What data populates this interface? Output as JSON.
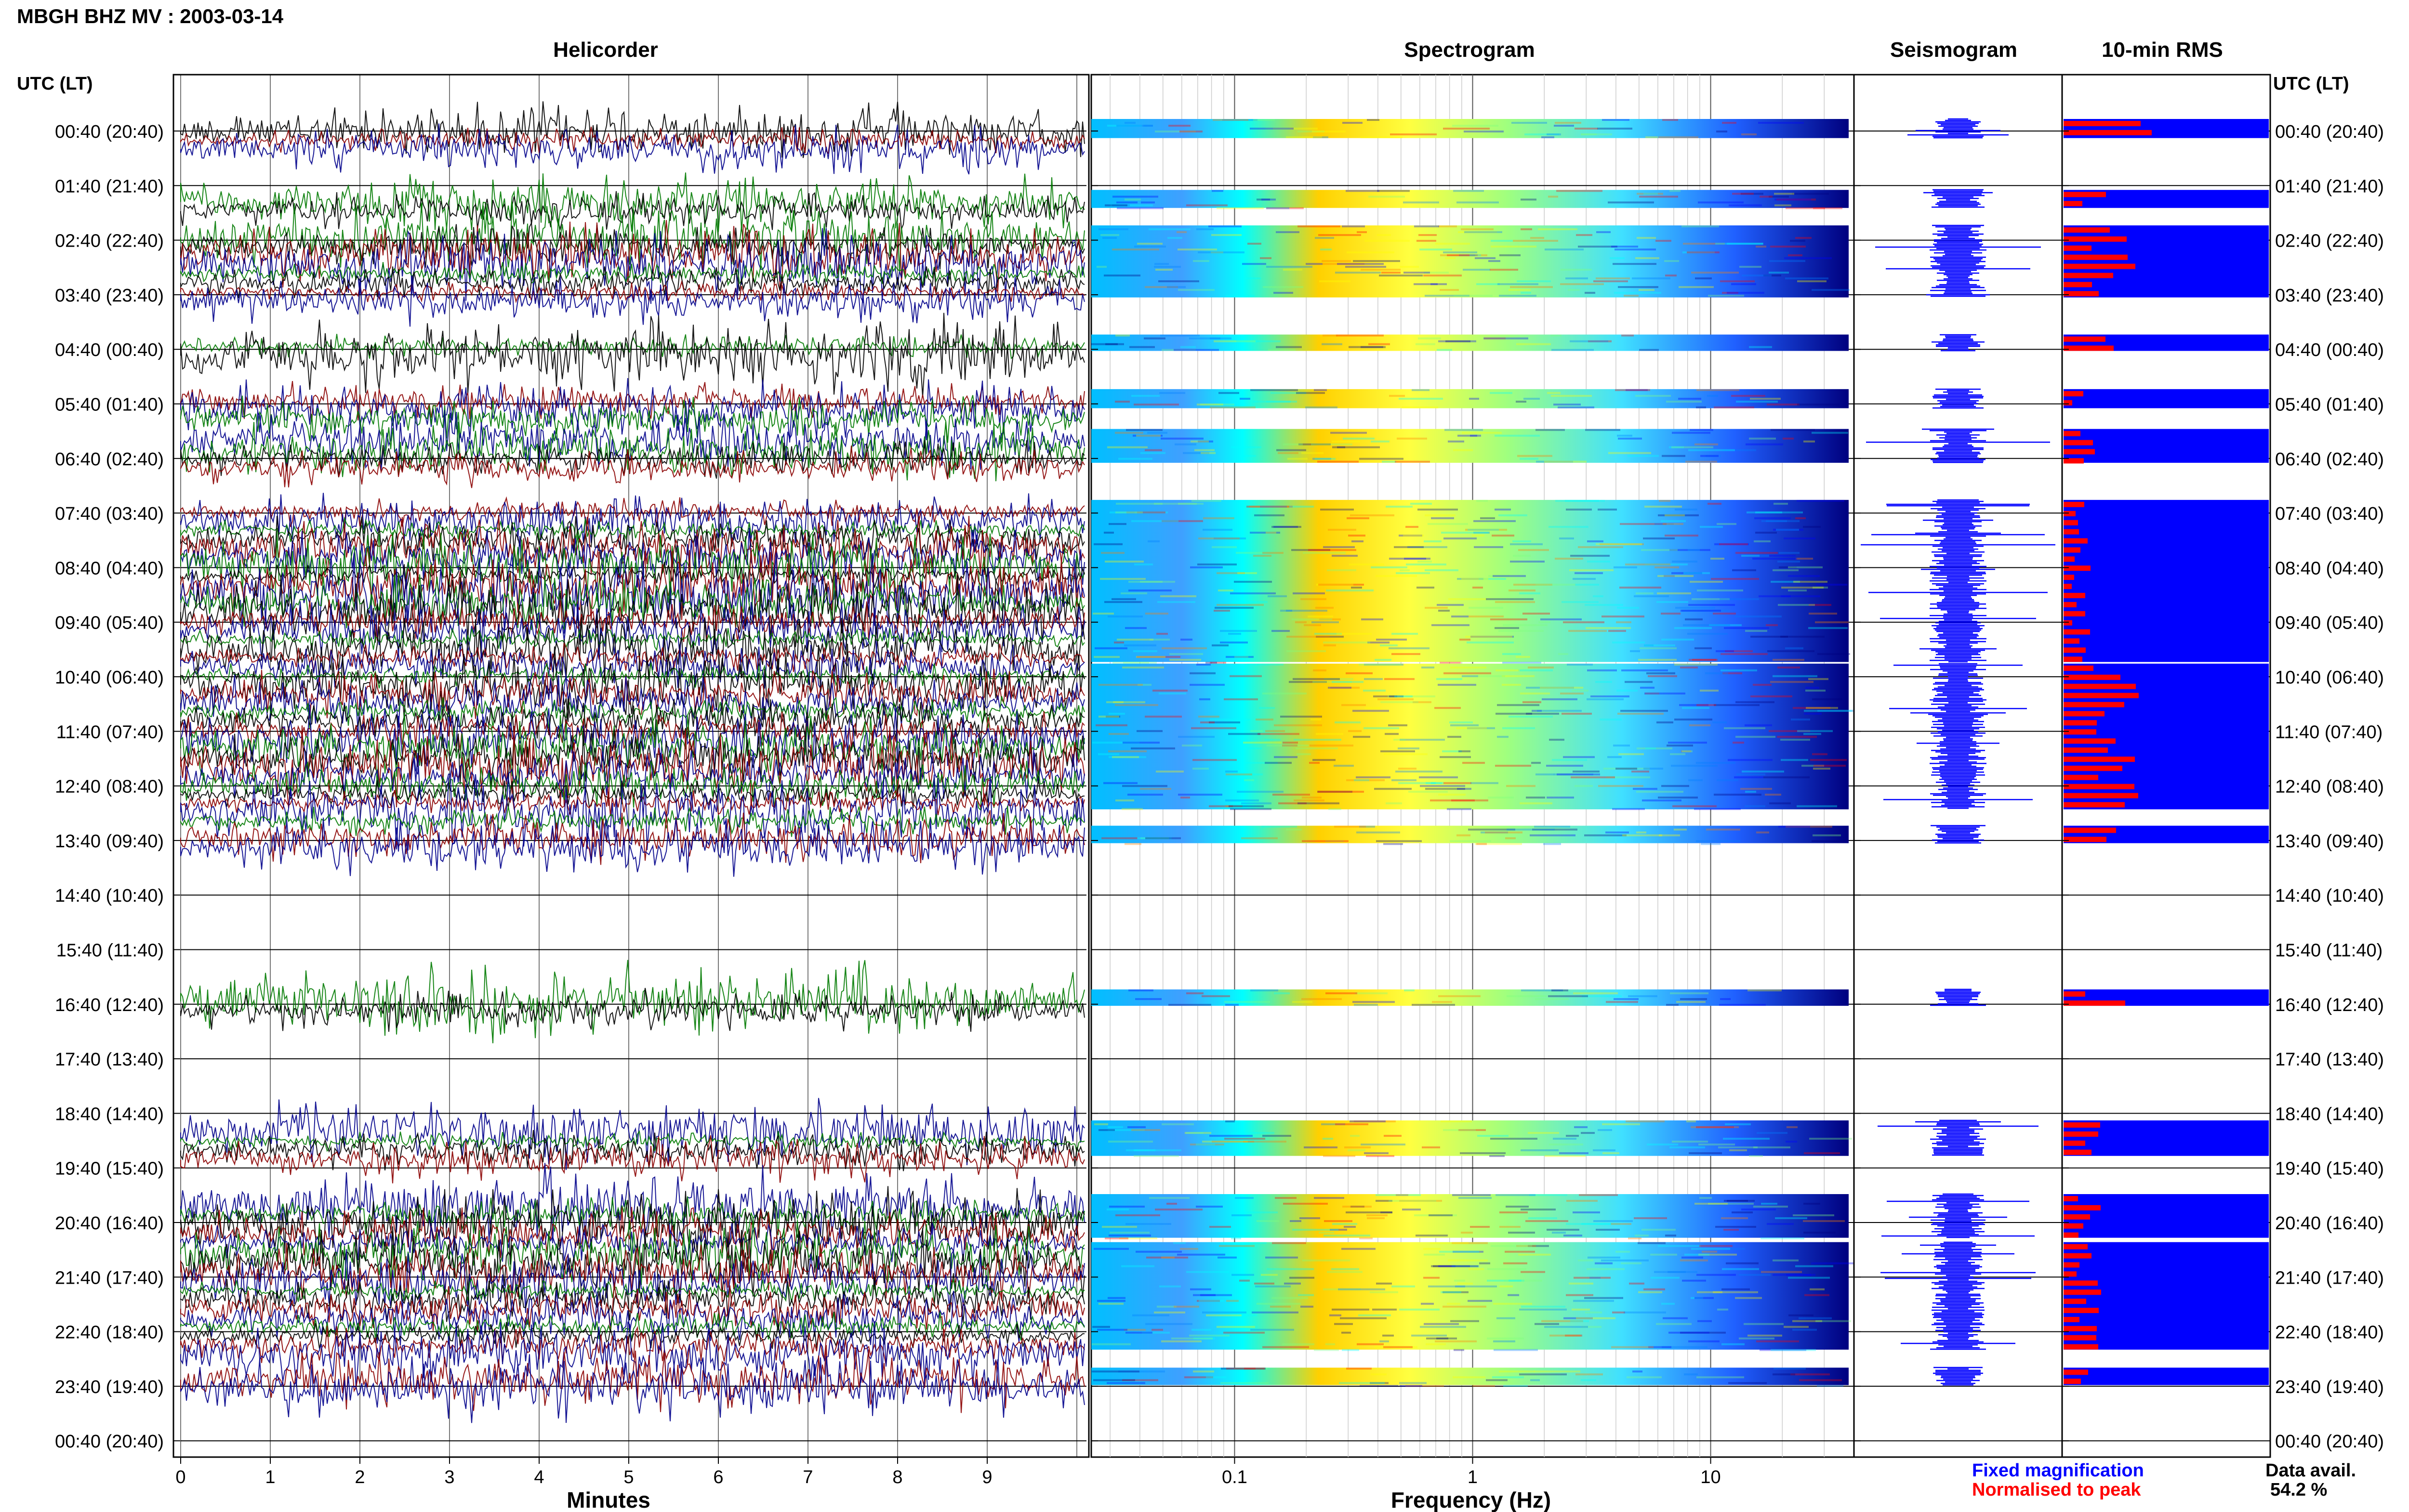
{
  "header": {
    "station_title": "MBGH BHZ MV : 2003-03-14",
    "panel_titles": [
      "Helicorder",
      "Spectrogram",
      "Seismogram",
      "10-min RMS"
    ],
    "left_axis_title": "UTC (LT)",
    "right_axis_title": "UTC (LT)"
  },
  "chart_data": {
    "type": "heatmap",
    "row_labels": [
      "00:40 (20:40)",
      "01:40 (21:40)",
      "02:40 (22:40)",
      "03:40 (23:40)",
      "04:40 (00:40)",
      "05:40 (01:40)",
      "06:40 (02:40)",
      "07:40 (03:40)",
      "08:40 (04:40)",
      "09:40 (05:40)",
      "10:40 (06:40)",
      "11:40 (07:40)",
      "12:40 (08:40)",
      "13:40 (09:40)",
      "14:40 (10:40)",
      "15:40 (11:40)",
      "16:40 (12:40)",
      "17:40 (13:40)",
      "18:40 (14:40)",
      "19:40 (15:40)",
      "20:40 (16:40)",
      "21:40 (17:40)",
      "22:40 (18:40)",
      "23:40 (19:40)",
      "00:40 (20:40)"
    ],
    "helicorder": {
      "xlabel": "Minutes",
      "x_ticks": [
        "0",
        "1",
        "2",
        "3",
        "4",
        "5",
        "6",
        "7",
        "8",
        "9"
      ],
      "xlim": [
        0,
        10
      ],
      "trace_colors": [
        "#000000",
        "#8b0000",
        "#00008b",
        "#007a00"
      ]
    },
    "spectrogram": {
      "xlabel": "Frequency (Hz)",
      "x_scale": "log",
      "x_ticks": [
        "0.1",
        "1",
        "10"
      ],
      "xlim": [
        0.025,
        40
      ]
    },
    "data_rows": [
      0,
      1,
      2,
      3,
      4,
      5,
      6,
      7,
      8,
      9,
      10,
      11,
      12,
      13,
      16,
      19,
      20,
      21,
      22,
      23
    ],
    "data_segments_hours": [
      [
        0.0,
        0.35
      ],
      [
        1.3,
        1.63
      ],
      [
        1.95,
        3.27
      ],
      [
        3.95,
        4.25
      ],
      [
        4.95,
        5.3
      ],
      [
        5.68,
        6.3
      ],
      [
        6.98,
        9.95
      ],
      [
        9.98,
        12.65
      ],
      [
        12.95,
        13.27
      ],
      [
        15.95,
        16.25
      ],
      [
        18.35,
        19.0
      ],
      [
        19.7,
        20.5
      ],
      [
        20.58,
        22.55
      ],
      [
        22.88,
        23.2
      ]
    ],
    "rms_fixed_fraction": [
      1,
      1,
      1,
      1,
      1,
      1,
      1,
      1,
      1,
      1,
      1,
      1,
      1,
      1,
      1,
      1,
      1,
      1,
      1,
      1
    ],
    "rms_normalised_fraction": [
      0.35,
      0.2,
      0.3,
      0.35,
      0.1,
      0.15,
      0.1,
      0.3,
      0.2,
      0.25,
      0.15,
      0.15,
      0.15,
      0.1,
      0.15,
      0.3,
      0.25,
      0.15,
      0.15,
      0.15
    ],
    "data_availability_percent": 54.2
  },
  "legend": {
    "fixed_label": "Fixed magnification",
    "fixed_color": "#0000ff",
    "normalised_label": "Normalised to peak",
    "normalised_color": "#ff0000"
  },
  "footer": {
    "availability_label": "Data avail.",
    "availability_value": "54.2 %"
  }
}
